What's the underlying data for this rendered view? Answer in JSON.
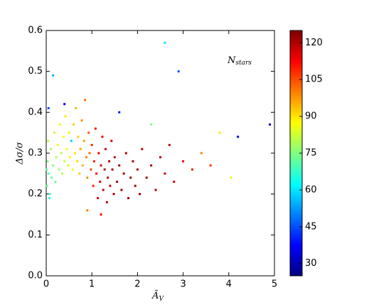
{
  "chart_data": {
    "type": "scatter",
    "ylabel": "Δσ/σ",
    "xlabel": "Ã",
    "xlabel_sub": "V",
    "annotation": "N",
    "annotation_sub": "stars",
    "xlim": [
      0,
      5
    ],
    "xticks": [
      0,
      1,
      2,
      3,
      4,
      5
    ],
    "ylim": [
      0,
      0.6
    ],
    "yticks": [
      {
        "value": 0,
        "label": "0.0"
      },
      0.1,
      0.2,
      0.3,
      0.4,
      0.5,
      0.6
    ],
    "clim": [
      25,
      125
    ],
    "cticks": [
      30,
      45,
      60,
      75,
      90,
      105,
      120
    ],
    "colormap": "jet",
    "series": [
      {
        "x": [
          0.02,
          0.05,
          0.03,
          0.08,
          0.1,
          0.12,
          0.04,
          0.15,
          0.07,
          0.18,
          0.2,
          0.22,
          0.01,
          0.25,
          0.28,
          0.3,
          0.33,
          0.35,
          0.38,
          0.4,
          0.42,
          0.45,
          0.48,
          0.5,
          0.52,
          0.55,
          0.58,
          0.6,
          0.63,
          0.65,
          0.68,
          0.7,
          0.73,
          0.75,
          0.78,
          0.8,
          0.83,
          0.85,
          0.88,
          0.9,
          0.93,
          0.95,
          0.98,
          1.0,
          1.03,
          1.05,
          1.08,
          1.1,
          1.13,
          1.15,
          1.18,
          1.2,
          1.23,
          1.25,
          1.28,
          1.3,
          1.33,
          1.35,
          1.38,
          1.4,
          1.43,
          1.45,
          1.48,
          1.5,
          1.55,
          1.6,
          1.65,
          1.7,
          1.75,
          1.8,
          1.85,
          1.9,
          1.95,
          2.0,
          2.05,
          2.1,
          2.2,
          2.3,
          2.4,
          2.5,
          2.6,
          2.7,
          2.8,
          3.0,
          3.2,
          3.4,
          2.6,
          2.9,
          3.6,
          4.2,
          4.9,
          0.15,
          1.6,
          0.4,
          2.3,
          4.05,
          0.9,
          1.2,
          0.05,
          3.8
        ],
        "values": [
          0.22,
          0.25,
          0.28,
          0.2,
          0.31,
          0.24,
          0.33,
          0.27,
          0.19,
          0.35,
          0.23,
          0.29,
          0.26,
          0.32,
          0.26,
          0.37,
          0.3,
          0.25,
          0.34,
          0.28,
          0.39,
          0.31,
          0.27,
          0.35,
          0.29,
          0.33,
          0.26,
          0.37,
          0.3,
          0.41,
          0.28,
          0.34,
          0.25,
          0.31,
          0.38,
          0.27,
          0.33,
          0.43,
          0.29,
          0.24,
          0.35,
          0.3,
          0.26,
          0.32,
          0.22,
          0.28,
          0.36,
          0.25,
          0.19,
          0.3,
          0.23,
          0.27,
          0.34,
          0.21,
          0.26,
          0.31,
          0.18,
          0.24,
          0.28,
          0.22,
          0.33,
          0.26,
          0.2,
          0.29,
          0.23,
          0.27,
          0.21,
          0.25,
          0.3,
          0.19,
          0.24,
          0.28,
          0.22,
          0.26,
          0.2,
          0.31,
          0.24,
          0.27,
          0.21,
          0.29,
          0.25,
          0.32,
          0.23,
          0.28,
          0.26,
          0.3,
          0.57,
          0.5,
          0.27,
          0.34,
          0.37,
          0.49,
          0.4,
          0.42,
          0.37,
          0.24,
          0.16,
          0.15,
          0.41,
          0.35
        ],
        "c": [
          72,
          70,
          75,
          68,
          78,
          73,
          80,
          76,
          66,
          82,
          74,
          79,
          71,
          84,
          77,
          86,
          81,
          80,
          88,
          83,
          90,
          85,
          84,
          89,
          87,
          58,
          86,
          92,
          90,
          95,
          91,
          93,
          92,
          96,
          98,
          95,
          97,
          102,
          100,
          99,
          104,
          103,
          106,
          108,
          110,
          109,
          112,
          113,
          115,
          114,
          116,
          117,
          115,
          118,
          119,
          117,
          120,
          119,
          121,
          120,
          118,
          121,
          122,
          120,
          121,
          122,
          121,
          122,
          120,
          123,
          122,
          121,
          122,
          121,
          122,
          120,
          121,
          122,
          121,
          120,
          119,
          118,
          118,
          115,
          110,
          100,
          60,
          45,
          108,
          35,
          30,
          55,
          40,
          35,
          75,
          85,
          100,
          112,
          45,
          90
        ]
      }
    ]
  }
}
